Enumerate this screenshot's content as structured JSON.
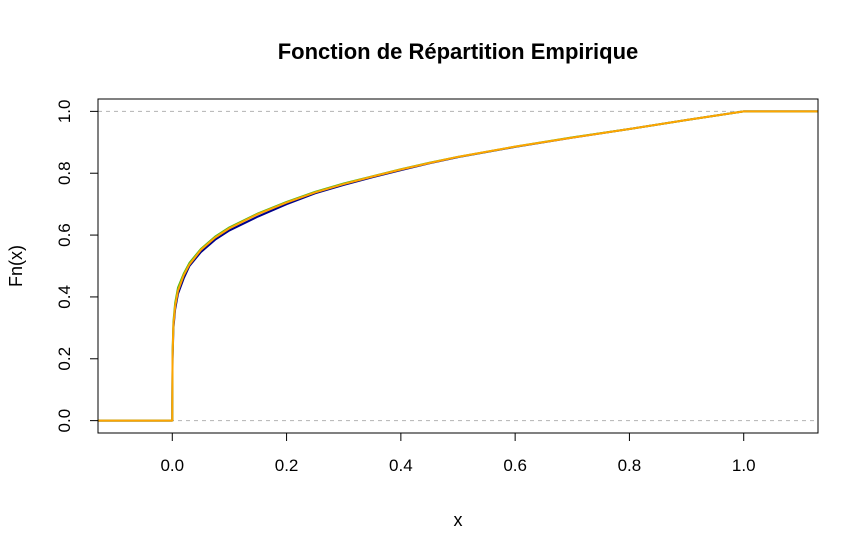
{
  "chart_data": {
    "type": "line",
    "title": "Fonction de Répartition Empirique",
    "xlabel": "x",
    "ylabel": "Fn(x)",
    "xlim": [
      -0.13,
      1.13
    ],
    "ylim": [
      -0.04,
      1.04
    ],
    "x_ticks": [
      "0.0",
      "0.2",
      "0.4",
      "0.6",
      "0.8",
      "1.0"
    ],
    "y_ticks": [
      "0.0",
      "0.2",
      "0.4",
      "0.6",
      "0.8",
      "1.0"
    ],
    "reference_lines_y": [
      0,
      1
    ],
    "grid": false,
    "legend": "none",
    "series": [
      {
        "color": "#00008B",
        "points": [
          [
            -0.13,
            0
          ],
          [
            0,
            0
          ],
          [
            0,
            0.05
          ],
          [
            0.0005,
            0.2
          ],
          [
            0.002,
            0.3
          ],
          [
            0.005,
            0.36
          ],
          [
            0.01,
            0.41
          ],
          [
            0.02,
            0.46
          ],
          [
            0.03,
            0.5
          ],
          [
            0.05,
            0.545
          ],
          [
            0.075,
            0.585
          ],
          [
            0.1,
            0.615
          ],
          [
            0.15,
            0.66
          ],
          [
            0.2,
            0.7
          ],
          [
            0.25,
            0.735
          ],
          [
            0.3,
            0.762
          ],
          [
            0.35,
            0.787
          ],
          [
            0.4,
            0.81
          ],
          [
            0.45,
            0.832
          ],
          [
            0.5,
            0.852
          ],
          [
            0.6,
            0.885
          ],
          [
            0.7,
            0.915
          ],
          [
            0.8,
            0.943
          ],
          [
            0.9,
            0.972
          ],
          [
            1.0,
            1.0
          ],
          [
            1.13,
            1.0
          ]
        ]
      },
      {
        "color": "#4CBB17",
        "points": [
          [
            -0.13,
            0
          ],
          [
            0,
            0
          ],
          [
            0,
            0.05
          ],
          [
            0.0005,
            0.22
          ],
          [
            0.002,
            0.32
          ],
          [
            0.005,
            0.38
          ],
          [
            0.01,
            0.43
          ],
          [
            0.02,
            0.475
          ],
          [
            0.03,
            0.51
          ],
          [
            0.05,
            0.555
          ],
          [
            0.075,
            0.595
          ],
          [
            0.1,
            0.625
          ],
          [
            0.15,
            0.67
          ],
          [
            0.2,
            0.707
          ],
          [
            0.25,
            0.74
          ],
          [
            0.3,
            0.767
          ],
          [
            0.35,
            0.79
          ],
          [
            0.4,
            0.813
          ],
          [
            0.45,
            0.834
          ],
          [
            0.5,
            0.853
          ],
          [
            0.6,
            0.886
          ],
          [
            0.7,
            0.916
          ],
          [
            0.8,
            0.943
          ],
          [
            0.9,
            0.972
          ],
          [
            1.0,
            1.0
          ],
          [
            1.13,
            1.0
          ]
        ]
      },
      {
        "color": "#FFA500",
        "points": [
          [
            -0.13,
            0
          ],
          [
            0,
            0
          ],
          [
            0,
            0.05
          ],
          [
            0.0005,
            0.21
          ],
          [
            0.002,
            0.31
          ],
          [
            0.005,
            0.37
          ],
          [
            0.01,
            0.42
          ],
          [
            0.02,
            0.47
          ],
          [
            0.03,
            0.505
          ],
          [
            0.05,
            0.552
          ],
          [
            0.075,
            0.592
          ],
          [
            0.1,
            0.622
          ],
          [
            0.15,
            0.668
          ],
          [
            0.2,
            0.705
          ],
          [
            0.25,
            0.738
          ],
          [
            0.3,
            0.765
          ],
          [
            0.35,
            0.789
          ],
          [
            0.4,
            0.812
          ],
          [
            0.45,
            0.833
          ],
          [
            0.5,
            0.853
          ],
          [
            0.6,
            0.886
          ],
          [
            0.7,
            0.915
          ],
          [
            0.8,
            0.943
          ],
          [
            0.9,
            0.972
          ],
          [
            1.0,
            1.0
          ],
          [
            1.13,
            1.0
          ]
        ]
      }
    ]
  }
}
